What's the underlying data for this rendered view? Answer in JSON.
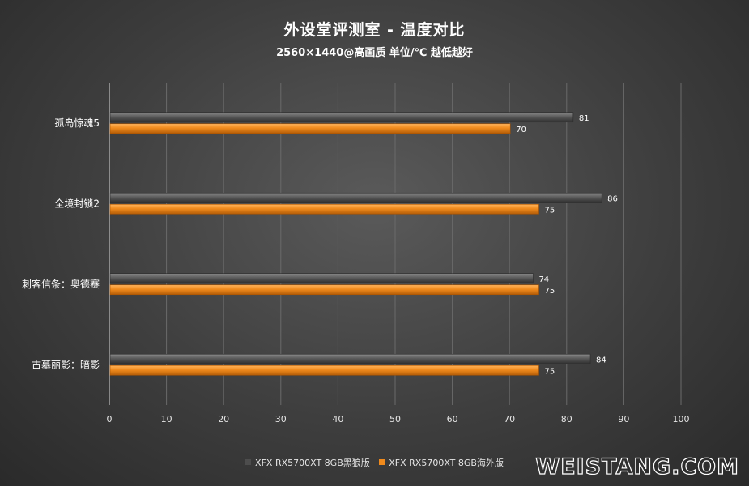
{
  "title": "外设堂评测室 -  温度对比",
  "subtitle": "2560×1440@高画质 单位/℃   越低越好",
  "watermark": "WEISTANG.COM",
  "colors": {
    "series1": "#4d4d4d",
    "series2": "#f08a1c",
    "grid": "#6a6a6a",
    "axis": "#d9d9d9"
  },
  "chart_data": {
    "type": "bar",
    "orientation": "horizontal",
    "title": "外设堂评测室 -  温度对比",
    "subtitle": "2560×1440@高画质 单位/℃   越低越好",
    "xlabel": "",
    "ylabel": "",
    "categories": [
      "孤岛惊魂5",
      "全境封锁2",
      "刺客信条：奥德赛",
      "古墓丽影：暗影"
    ],
    "series": [
      {
        "name": "XFX RX5700XT 8GB黑狼版",
        "values": [
          81,
          86,
          74,
          84
        ],
        "color": "#4d4d4d"
      },
      {
        "name": "XFX RX5700XT 8GB海外版",
        "values": [
          70,
          75,
          75,
          75
        ],
        "color": "#f08a1c"
      }
    ],
    "xlim": [
      0,
      100
    ],
    "xticks": [
      0,
      10,
      20,
      30,
      40,
      50,
      60,
      70,
      80,
      90,
      100
    ],
    "grid": true,
    "legend_position": "bottom"
  }
}
